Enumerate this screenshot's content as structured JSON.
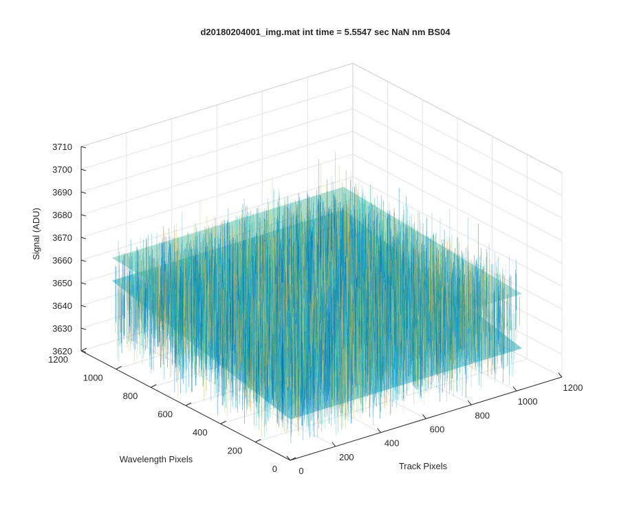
{
  "chart_data": {
    "type": "surface",
    "title": "d20180204001_img.mat int time = 5.5547 sec  NaN nm BS04",
    "xlabel": "Track Pixels",
    "ylabel": "Wavelength Pixels",
    "zlabel": "Signal (ADU)",
    "xlim": [
      0,
      1200
    ],
    "ylim": [
      0,
      1200
    ],
    "zlim": [
      3620,
      3710
    ],
    "xticks": [
      0,
      200,
      400,
      600,
      800,
      1000,
      1200
    ],
    "yticks": [
      0,
      200,
      400,
      600,
      800,
      1000,
      1200
    ],
    "zticks": [
      3620,
      3630,
      3640,
      3650,
      3660,
      3670,
      3680,
      3690,
      3700,
      3710
    ],
    "x_extent": [
      0,
      1024
    ],
    "y_extent": [
      0,
      1024
    ],
    "signal_mean": 3650,
    "signal_range": [
      3630,
      3692
    ],
    "colormap": [
      "#0072bd",
      "#00a3c7",
      "#2ab0a5",
      "#6ac17a",
      "#c9c46a",
      "#e8c46d"
    ],
    "grid": true
  }
}
